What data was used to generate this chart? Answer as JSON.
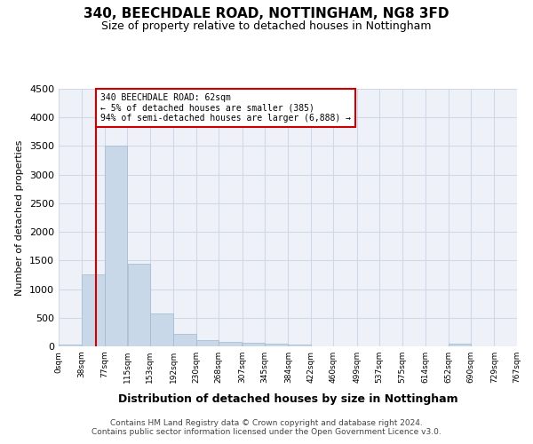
{
  "title": "340, BEECHDALE ROAD, NOTTINGHAM, NG8 3FD",
  "subtitle": "Size of property relative to detached houses in Nottingham",
  "xlabel": "Distribution of detached houses by size in Nottingham",
  "ylabel": "Number of detached properties",
  "footer_line1": "Contains HM Land Registry data © Crown copyright and database right 2024.",
  "footer_line2": "Contains public sector information licensed under the Open Government Licence v3.0.",
  "bar_edges": [
    0,
    38,
    77,
    115,
    153,
    192,
    230,
    268,
    307,
    345,
    384,
    422,
    460,
    499,
    537,
    575,
    614,
    652,
    690,
    729,
    767
  ],
  "bar_heights": [
    30,
    1250,
    3500,
    1450,
    580,
    220,
    110,
    80,
    55,
    40,
    30,
    0,
    0,
    0,
    0,
    0,
    0,
    40,
    0,
    0
  ],
  "bar_color": "#c8d8e8",
  "bar_edge_color": "#a0b8d0",
  "grid_color": "#d0d8e8",
  "background_color": "#eef2f8",
  "red_line_x": 62,
  "annotation_text": "340 BEECHDALE ROAD: 62sqm\n← 5% of detached houses are smaller (385)\n94% of semi-detached houses are larger (6,888) →",
  "annotation_box_color": "#ffffff",
  "annotation_box_edge": "#cc0000",
  "red_line_color": "#cc0000",
  "ylim": [
    0,
    4500
  ],
  "yticks": [
    0,
    500,
    1000,
    1500,
    2000,
    2500,
    3000,
    3500,
    4000,
    4500
  ]
}
